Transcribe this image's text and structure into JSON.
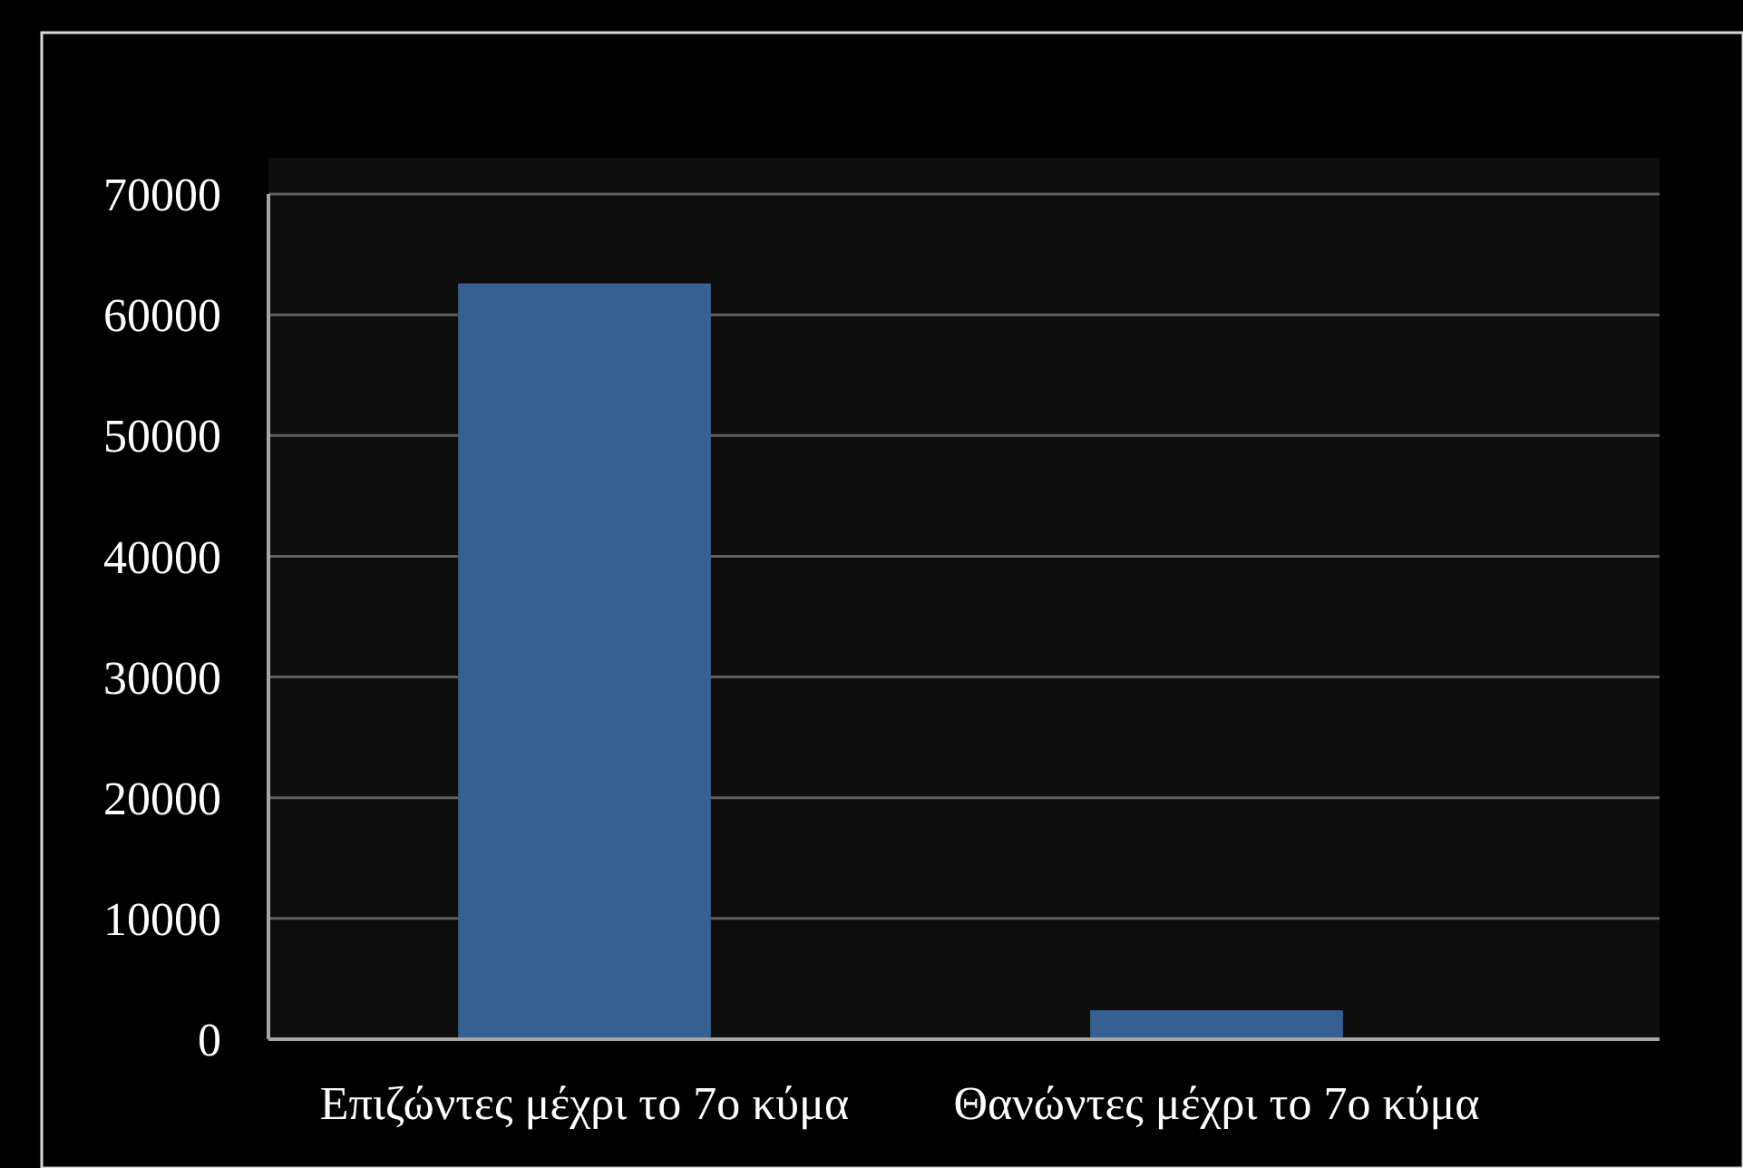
{
  "chart_data": {
    "type": "bar",
    "categories": [
      "Επιζώντες μέχρι το 7ο κύμα",
      "Θανώντες μέχρι το 7ο κύμα"
    ],
    "values": [
      62600,
      2400
    ],
    "color": "#376092",
    "ylim": [
      0,
      70000
    ],
    "yticks": [
      0,
      10000,
      20000,
      30000,
      40000,
      50000,
      60000,
      70000
    ],
    "grid": "y"
  }
}
